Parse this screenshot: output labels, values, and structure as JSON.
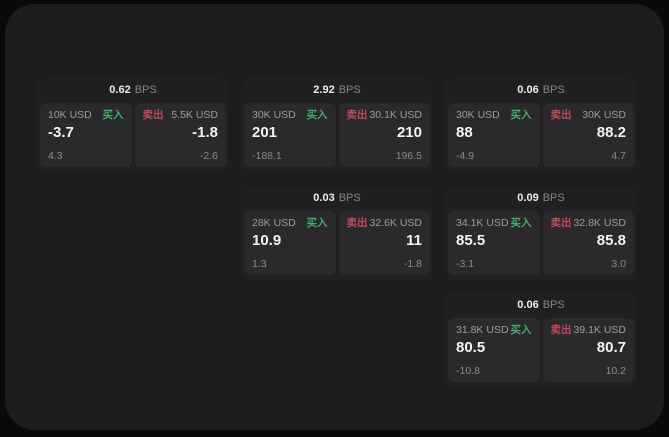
{
  "labels": {
    "buy": "买入",
    "sell": "卖出",
    "bps_unit": "BPS"
  },
  "colors": {
    "background": "#0a0a0b",
    "surface": "#1d1d1f",
    "card": "#202022",
    "panel": "#2a2a2c",
    "buy": "#3fae6a",
    "sell": "#c2495b"
  },
  "cards": [
    {
      "bps": "0.62",
      "buy": {
        "amount": "10K USD",
        "value": "-3.7",
        "delta": "4.3"
      },
      "sell": {
        "amount": "5.5K USD",
        "value": "-1.8",
        "delta": "-2.6"
      }
    },
    {
      "bps": "2.92",
      "buy": {
        "amount": "30K USD",
        "value": "201",
        "delta": "-188.1"
      },
      "sell": {
        "amount": "30.1K USD",
        "value": "210",
        "delta": "196.5"
      }
    },
    {
      "bps": "0.06",
      "buy": {
        "amount": "30K USD",
        "value": "88",
        "delta": "-4.9"
      },
      "sell": {
        "amount": "30K USD",
        "value": "88.2",
        "delta": "4.7"
      }
    },
    {
      "bps": "0.03",
      "buy": {
        "amount": "28K USD",
        "value": "10.9",
        "delta": "1.3"
      },
      "sell": {
        "amount": "32.6K USD",
        "value": "11",
        "delta": "-1.8"
      }
    },
    {
      "bps": "0.09",
      "buy": {
        "amount": "34.1K USD",
        "value": "85.5",
        "delta": "-3.1"
      },
      "sell": {
        "amount": "32.8K USD",
        "value": "85.8",
        "delta": "3.0"
      }
    },
    {
      "bps": "0.06",
      "buy": {
        "amount": "31.8K USD",
        "value": "80.5",
        "delta": "-10.8"
      },
      "sell": {
        "amount": "39.1K USD",
        "value": "80.7",
        "delta": "10.2"
      }
    }
  ]
}
